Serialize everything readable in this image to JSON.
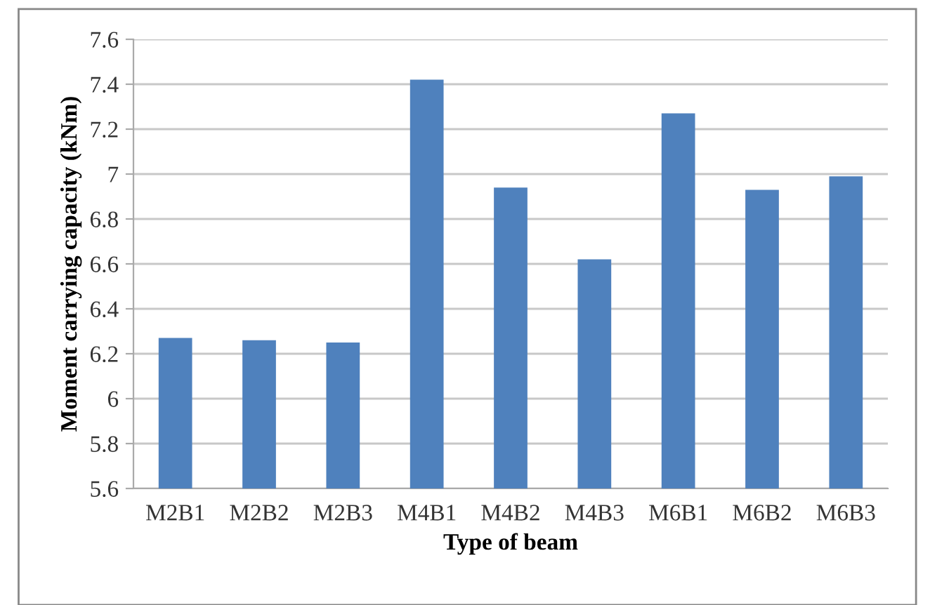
{
  "chart_data": {
    "type": "bar",
    "xlabel": "Type of beam",
    "ylabel": "Moment carrying capacity (kNm)",
    "categories": [
      "M2B1",
      "M2B2",
      "M2B3",
      "M4B1",
      "M4B2",
      "M4B3",
      "M6B1",
      "M6B2",
      "M6B3"
    ],
    "values": [
      6.27,
      6.26,
      6.25,
      7.42,
      6.94,
      6.62,
      7.27,
      6.93,
      6.99
    ],
    "color": "#4f81bd",
    "ylim": [
      5.6,
      7.6
    ],
    "yticks": [
      5.6,
      5.8,
      6,
      6.2,
      6.4,
      6.6,
      6.8,
      7,
      7.2,
      7.4,
      7.6
    ],
    "grid": "y",
    "legend": false
  }
}
